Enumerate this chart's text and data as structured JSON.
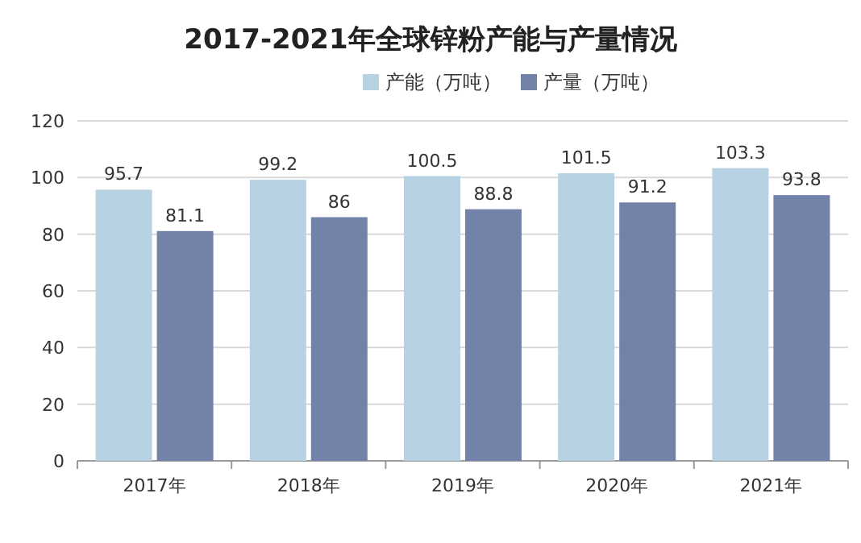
{
  "chart_data": {
    "type": "bar",
    "title": "2017-2021年全球锌粉产能与产量情况",
    "categories": [
      "2017年",
      "2018年",
      "2019年",
      "2020年",
      "2021年"
    ],
    "series": [
      {
        "name": "产能（万吨）",
        "color": "#b7d3e3",
        "values": [
          95.7,
          99.2,
          100.5,
          101.5,
          103.3
        ]
      },
      {
        "name": "产量（万吨）",
        "color": "#7382a8",
        "values": [
          81.1,
          86,
          88.8,
          91.2,
          93.8
        ]
      }
    ],
    "ylim": [
      0,
      120
    ],
    "yticks": [
      0,
      20,
      40,
      60,
      80,
      100,
      120
    ],
    "grid": "y",
    "legend": "top",
    "data_labels": true
  }
}
